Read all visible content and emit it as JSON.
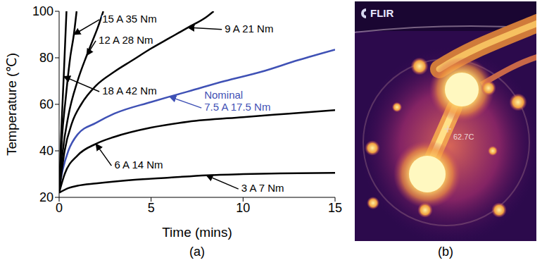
{
  "chart_data": {
    "type": "line",
    "caption": "(a)",
    "x_label": "Time (mins)",
    "y_label": "Temperature (℃)",
    "xlim": [
      0,
      15
    ],
    "xticks": [
      0,
      5,
      10,
      15
    ],
    "ylim": [
      20,
      100
    ],
    "yticks": [
      20,
      40,
      60,
      80,
      100
    ],
    "grid": false,
    "series": [
      {
        "name": "3 A 7 Nm",
        "color": "#000000",
        "x": [
          0,
          0.5,
          1,
          2,
          4,
          6,
          8,
          10,
          12,
          15
        ],
        "values": [
          22,
          24,
          25,
          26,
          27.5,
          28.5,
          29.5,
          30,
          30.3,
          30.5
        ]
      },
      {
        "name": "6 A 14 Nm",
        "color": "#000000",
        "x": [
          0,
          0.3,
          1,
          2,
          3,
          5,
          7,
          10,
          12.5,
          15
        ],
        "values": [
          22,
          30,
          38,
          43,
          46,
          50,
          52.5,
          54.5,
          56,
          57.5
        ]
      },
      {
        "name": "Nominal\n7.5 A 17.5 Nm",
        "color": "#3f51b5",
        "x": [
          0,
          0.2,
          0.5,
          1,
          2,
          3,
          5,
          6,
          7,
          9,
          11,
          13,
          15
        ],
        "values": [
          24,
          32,
          40,
          47,
          52,
          56,
          61,
          63.3,
          65.5,
          70,
          74,
          79,
          83.5
        ]
      },
      {
        "name": "9 A 21 Nm",
        "color": "#000000",
        "x": [
          0,
          0.3,
          0.7,
          1.2,
          2,
          3,
          4,
          5,
          6,
          7,
          8,
          8.4
        ],
        "values": [
          22,
          40,
          52,
          60,
          68,
          74,
          79,
          84,
          88.5,
          93,
          97.5,
          100
        ]
      },
      {
        "name": "12 A 28 Nm",
        "color": "#000000",
        "x": [
          0,
          0.2,
          0.5,
          1,
          1.5,
          1.8,
          2.1,
          2.4
        ],
        "values": [
          22,
          40,
          55,
          70,
          81,
          87,
          93,
          100
        ]
      },
      {
        "name": "15 A 35 Nm",
        "color": "#000000",
        "x": [
          0,
          0.15,
          0.35,
          0.6,
          0.8,
          0.95
        ],
        "values": [
          22,
          45,
          62,
          80,
          90,
          100
        ]
      },
      {
        "name": "18 A 42 Nm",
        "color": "#000000",
        "x": [
          0,
          0.1,
          0.25,
          0.4
        ],
        "values": [
          22,
          45,
          72,
          100
        ]
      }
    ]
  },
  "thermal_image": {
    "caption": "(b)",
    "logo": "FLIR",
    "readout": "62.7C"
  }
}
